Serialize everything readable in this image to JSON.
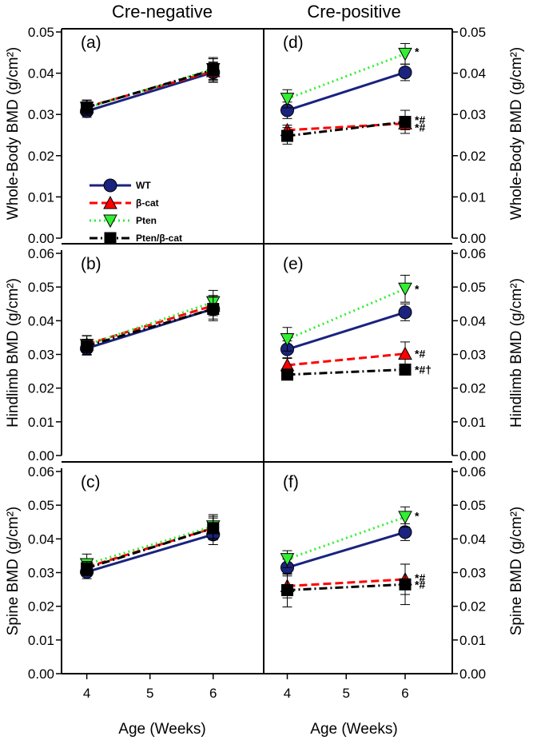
{
  "column_titles": [
    "Cre-negative",
    "Cre-positive"
  ],
  "legend": [
    {
      "label": "WT",
      "color": "#1a237e",
      "marker": "circle",
      "dash": "solid"
    },
    {
      "label": "β-cat",
      "color": "#ff0000",
      "marker": "triangle-up",
      "dash": "dash"
    },
    {
      "label": "Pten",
      "color": "#33ee33",
      "marker": "triangle-down",
      "dash": "dot"
    },
    {
      "label": "Pten/β-cat",
      "color": "#000000",
      "marker": "square",
      "dash": "dashdot"
    }
  ],
  "chart_data": [
    {
      "type": "line",
      "panel_label": "(a)",
      "ylabel": "Whole-Body BMD (g/cm²)",
      "x": [
        4,
        6
      ],
      "xlim": [
        3.6,
        6.8
      ],
      "xticks": [
        4,
        5,
        6
      ],
      "ylim": [
        0,
        0.05
      ],
      "yticks": [
        "0.00",
        "0.01",
        "0.02",
        "0.03",
        "0.04",
        "0.05"
      ],
      "series": [
        {
          "name": "WT",
          "values": [
            0.0308,
            0.0402
          ],
          "errors": [
            0.0015,
            0.0023
          ]
        },
        {
          "name": "β-cat",
          "values": [
            0.0318,
            0.0405
          ],
          "errors": [
            0.0016,
            0.0022
          ]
        },
        {
          "name": "Pten",
          "values": [
            0.0316,
            0.041
          ],
          "errors": [
            0.0018,
            0.0025
          ]
        },
        {
          "name": "Pten/β-cat",
          "values": [
            0.0317,
            0.0408
          ],
          "errors": [
            0.0018,
            0.003
          ]
        }
      ],
      "annotations": []
    },
    {
      "type": "line",
      "panel_label": "(b)",
      "ylabel": "Hindlimb BMD (g/cm²)",
      "x": [
        4,
        6
      ],
      "xlim": [
        3.6,
        6.8
      ],
      "xticks": [
        4,
        5,
        6
      ],
      "ylim": [
        0,
        0.06
      ],
      "yticks": [
        "0.00",
        "0.01",
        "0.02",
        "0.03",
        "0.04",
        "0.05",
        "0.06"
      ],
      "series": [
        {
          "name": "WT",
          "values": [
            0.0318,
            0.0435
          ],
          "errors": [
            0.002,
            0.003
          ]
        },
        {
          "name": "β-cat",
          "values": [
            0.033,
            0.0445
          ],
          "errors": [
            0.0025,
            0.003
          ]
        },
        {
          "name": "Pten",
          "values": [
            0.0328,
            0.0455
          ],
          "errors": [
            0.0028,
            0.0035
          ]
        },
        {
          "name": "Pten/β-cat",
          "values": [
            0.0325,
            0.0435
          ],
          "errors": [
            0.002,
            0.0035
          ]
        }
      ],
      "annotations": []
    },
    {
      "type": "line",
      "panel_label": "(c)",
      "ylabel": "Spine BMD (g/cm²)",
      "x": [
        4,
        6
      ],
      "xlim": [
        3.6,
        6.8
      ],
      "xticks": [
        4,
        5,
        6
      ],
      "ylim": [
        0,
        0.06
      ],
      "yticks": [
        "0.00",
        "0.01",
        "0.02",
        "0.03",
        "0.04",
        "0.05",
        "0.06"
      ],
      "series": [
        {
          "name": "WT",
          "values": [
            0.0302,
            0.0413
          ],
          "errors": [
            0.002,
            0.003
          ]
        },
        {
          "name": "β-cat",
          "values": [
            0.0316,
            0.0432
          ],
          "errors": [
            0.0025,
            0.003
          ]
        },
        {
          "name": "Pten",
          "values": [
            0.0325,
            0.0437
          ],
          "errors": [
            0.003,
            0.0035
          ]
        },
        {
          "name": "Pten/β-cat",
          "values": [
            0.0313,
            0.0432
          ],
          "errors": [
            0.002,
            0.0035
          ]
        }
      ],
      "annotations": []
    },
    {
      "type": "line",
      "panel_label": "(d)",
      "ylabel": "Whole-Body BMD (g/cm²)",
      "x": [
        4,
        6
      ],
      "xlim": [
        3.6,
        6.8
      ],
      "xticks": [
        4,
        5,
        6
      ],
      "ylim": [
        0,
        0.05
      ],
      "yticks": [
        "0.00",
        "0.01",
        "0.02",
        "0.03",
        "0.04",
        "0.05"
      ],
      "series": [
        {
          "name": "WT",
          "values": [
            0.031,
            0.0402
          ],
          "errors": [
            0.002,
            0.002
          ]
        },
        {
          "name": "β-cat",
          "values": [
            0.0262,
            0.0278
          ],
          "errors": [
            0.0012,
            0.0015
          ]
        },
        {
          "name": "Pten",
          "values": [
            0.0338,
            0.0447
          ],
          "errors": [
            0.0022,
            0.0025
          ]
        },
        {
          "name": "Pten/β-cat",
          "values": [
            0.0248,
            0.0282
          ],
          "errors": [
            0.002,
            0.0028
          ]
        }
      ],
      "annotations": [
        {
          "text": "*",
          "x": 6,
          "y": 0.0453
        },
        {
          "text": "*#",
          "x": 6,
          "y": 0.0287
        },
        {
          "text": "*#",
          "x": 6,
          "y": 0.0268
        }
      ]
    },
    {
      "type": "line",
      "panel_label": "(e)",
      "ylabel": "Hindlimb BMD (g/cm²)",
      "x": [
        4,
        6
      ],
      "xlim": [
        3.6,
        6.8
      ],
      "xticks": [
        4,
        5,
        6
      ],
      "ylim": [
        0,
        0.06
      ],
      "yticks": [
        "0.00",
        "0.01",
        "0.02",
        "0.03",
        "0.04",
        "0.05",
        "0.06"
      ],
      "series": [
        {
          "name": "WT",
          "values": [
            0.0315,
            0.0425
          ],
          "errors": [
            0.0025,
            0.0025
          ]
        },
        {
          "name": "β-cat",
          "values": [
            0.0268,
            0.0302
          ],
          "errors": [
            0.002,
            0.0035
          ]
        },
        {
          "name": "Pten",
          "values": [
            0.0345,
            0.0495
          ],
          "errors": [
            0.0035,
            0.004
          ]
        },
        {
          "name": "Pten/β-cat",
          "values": [
            0.024,
            0.0255
          ],
          "errors": [
            0.0012,
            0.0012
          ]
        }
      ],
      "annotations": [
        {
          "text": "*",
          "x": 6,
          "y": 0.0495
        },
        {
          "text": "*#",
          "x": 6,
          "y": 0.0302
        },
        {
          "text": "*#†",
          "x": 6,
          "y": 0.0255
        }
      ]
    },
    {
      "type": "line",
      "panel_label": "(f)",
      "ylabel": "Spine BMD (g/cm²)",
      "x": [
        4,
        6
      ],
      "xlim": [
        3.6,
        6.8
      ],
      "xticks": [
        4,
        5,
        6
      ],
      "ylim": [
        0,
        0.06
      ],
      "yticks": [
        "0.00",
        "0.01",
        "0.02",
        "0.03",
        "0.04",
        "0.05",
        "0.06"
      ],
      "series": [
        {
          "name": "WT",
          "values": [
            0.0315,
            0.042
          ],
          "errors": [
            0.0025,
            0.0025
          ]
        },
        {
          "name": "β-cat",
          "values": [
            0.026,
            0.028
          ],
          "errors": [
            0.0035,
            0.0045
          ]
        },
        {
          "name": "Pten",
          "values": [
            0.034,
            0.0465
          ],
          "errors": [
            0.0025,
            0.003
          ]
        },
        {
          "name": "Pten/β-cat",
          "values": [
            0.0248,
            0.0265
          ],
          "errors": [
            0.005,
            0.006
          ]
        }
      ],
      "annotations": [
        {
          "text": "*",
          "x": 6,
          "y": 0.0468
        },
        {
          "text": "*#",
          "x": 6,
          "y": 0.0285
        },
        {
          "text": "*#",
          "x": 6,
          "y": 0.0265
        }
      ]
    }
  ],
  "xlabel": "Age (Weeks)"
}
